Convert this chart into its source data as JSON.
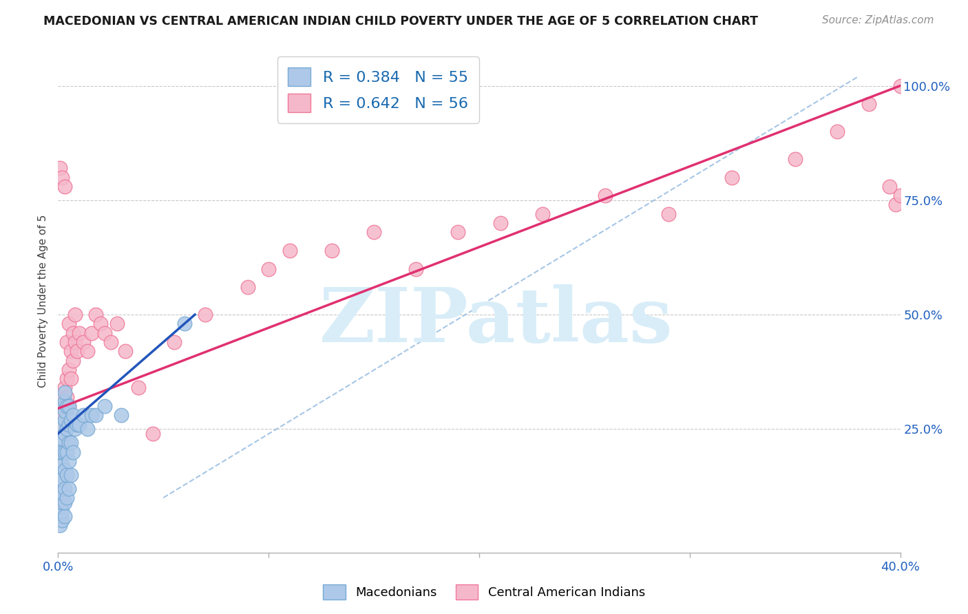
{
  "title": "MACEDONIAN VS CENTRAL AMERICAN INDIAN CHILD POVERTY UNDER THE AGE OF 5 CORRELATION CHART",
  "source": "Source: ZipAtlas.com",
  "ylabel": "Child Poverty Under the Age of 5",
  "xlim": [
    0.0,
    0.4
  ],
  "ylim": [
    -0.02,
    1.08
  ],
  "xtick_positions": [
    0.0,
    0.1,
    0.2,
    0.3,
    0.4
  ],
  "xtick_labels_shown": {
    "0.0": "0.0%",
    "0.40": "40.0%"
  },
  "ytick_positions": [
    0.25,
    0.5,
    0.75,
    1.0
  ],
  "ytick_labels": [
    "25.0%",
    "50.0%",
    "75.0%",
    "100.0%"
  ],
  "blue_R": 0.384,
  "blue_N": 55,
  "pink_R": 0.642,
  "pink_N": 56,
  "blue_color": "#adc8e8",
  "blue_edge": "#78aad4",
  "pink_color": "#f5b8cb",
  "pink_edge": "#f07898",
  "blue_line_color": "#2255bb",
  "pink_line_color": "#e03070",
  "dash_color": "#90b8e0",
  "watermark_color": "#d8edf8",
  "legend_blue_label": "Macedonians",
  "legend_pink_label": "Central American Indians",
  "blue_x": [
    0.001,
    0.001,
    0.001,
    0.001,
    0.001,
    0.001,
    0.001,
    0.001,
    0.001,
    0.001,
    0.002,
    0.002,
    0.002,
    0.002,
    0.002,
    0.002,
    0.002,
    0.002,
    0.002,
    0.002,
    0.003,
    0.003,
    0.003,
    0.003,
    0.003,
    0.003,
    0.003,
    0.003,
    0.003,
    0.003,
    0.004,
    0.004,
    0.004,
    0.004,
    0.004,
    0.005,
    0.005,
    0.005,
    0.005,
    0.005,
    0.006,
    0.006,
    0.006,
    0.007,
    0.007,
    0.008,
    0.009,
    0.01,
    0.012,
    0.014,
    0.016,
    0.018,
    0.022,
    0.03,
    0.06
  ],
  "blue_y": [
    0.04,
    0.06,
    0.08,
    0.1,
    0.12,
    0.14,
    0.16,
    0.18,
    0.2,
    0.22,
    0.05,
    0.07,
    0.09,
    0.11,
    0.14,
    0.17,
    0.2,
    0.23,
    0.26,
    0.3,
    0.06,
    0.09,
    0.12,
    0.16,
    0.2,
    0.24,
    0.27,
    0.29,
    0.31,
    0.33,
    0.1,
    0.15,
    0.2,
    0.25,
    0.3,
    0.12,
    0.18,
    0.22,
    0.26,
    0.3,
    0.15,
    0.22,
    0.27,
    0.2,
    0.28,
    0.25,
    0.26,
    0.26,
    0.28,
    0.25,
    0.28,
    0.28,
    0.3,
    0.28,
    0.48
  ],
  "pink_x": [
    0.001,
    0.001,
    0.001,
    0.001,
    0.002,
    0.002,
    0.002,
    0.003,
    0.003,
    0.003,
    0.004,
    0.004,
    0.004,
    0.005,
    0.005,
    0.005,
    0.006,
    0.006,
    0.007,
    0.007,
    0.008,
    0.008,
    0.009,
    0.01,
    0.012,
    0.014,
    0.016,
    0.018,
    0.02,
    0.022,
    0.025,
    0.028,
    0.032,
    0.038,
    0.045,
    0.055,
    0.07,
    0.09,
    0.1,
    0.11,
    0.13,
    0.15,
    0.17,
    0.19,
    0.21,
    0.23,
    0.26,
    0.29,
    0.32,
    0.35,
    0.37,
    0.385,
    0.395,
    0.398,
    0.4,
    0.4
  ],
  "pink_y": [
    0.26,
    0.28,
    0.3,
    0.82,
    0.28,
    0.32,
    0.8,
    0.3,
    0.34,
    0.78,
    0.32,
    0.36,
    0.44,
    0.3,
    0.38,
    0.48,
    0.36,
    0.42,
    0.4,
    0.46,
    0.44,
    0.5,
    0.42,
    0.46,
    0.44,
    0.42,
    0.46,
    0.5,
    0.48,
    0.46,
    0.44,
    0.48,
    0.42,
    0.34,
    0.24,
    0.44,
    0.5,
    0.56,
    0.6,
    0.64,
    0.64,
    0.68,
    0.6,
    0.68,
    0.7,
    0.72,
    0.76,
    0.72,
    0.8,
    0.84,
    0.9,
    0.96,
    0.78,
    0.74,
    1.0,
    0.76
  ],
  "pink_line_x0": 0.0,
  "pink_line_y0": 0.295,
  "pink_line_x1": 0.4,
  "pink_line_y1": 1.0,
  "blue_line_x0": 0.0,
  "blue_line_y0": 0.24,
  "blue_line_x1": 0.065,
  "blue_line_y1": 0.5,
  "dash_line_x0": 0.05,
  "dash_line_y0": 0.1,
  "dash_line_x1": 0.38,
  "dash_line_y1": 1.02
}
